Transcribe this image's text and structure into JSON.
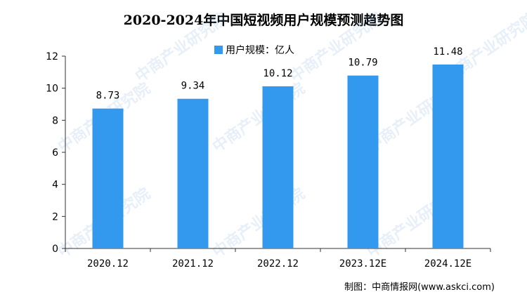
{
  "title": "2020-2024年中国短视频用户规模预测趋势图",
  "legend": {
    "label": "用户规模：亿人",
    "color": "#3399ee"
  },
  "source": "制图：中商情报网(www.askci.com)",
  "watermark": "中商产业研究院",
  "chart_data": {
    "type": "bar",
    "title": "2020-2024年中国短视频用户规模预测趋势图",
    "categories": [
      "2020.12",
      "2021.12",
      "2022.12",
      "2023.12E",
      "2024.12E"
    ],
    "series": [
      {
        "name": "用户规模：亿人",
        "values": [
          8.73,
          9.34,
          10.12,
          10.79,
          11.48
        ],
        "color": "#3399ee"
      }
    ],
    "data_labels": [
      "8.73",
      "9.34",
      "10.12",
      "10.79",
      "11.48"
    ],
    "yticks": [
      "0",
      "2",
      "4",
      "6",
      "8",
      "10",
      "12"
    ],
    "ylim": [
      0,
      12
    ],
    "xlabel": "",
    "ylabel": "",
    "grid": false,
    "legend_position": "top"
  }
}
